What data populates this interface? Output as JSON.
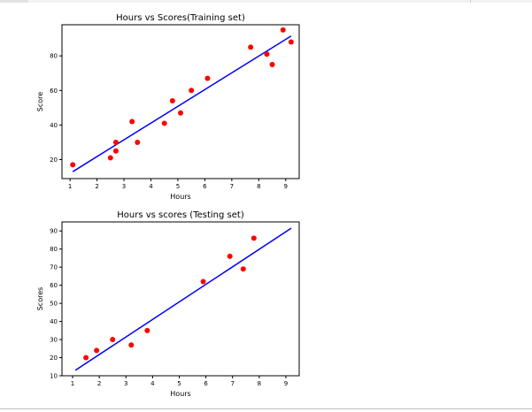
{
  "colors": {
    "points": "#ff0000",
    "line": "#0000ff",
    "axes": "#000000"
  },
  "chart_data": [
    {
      "type": "scatter",
      "title": "Hours vs Scores(Training set)",
      "xlabel": "Hours",
      "ylabel": "Score",
      "xlim": [
        0.7,
        9.5
      ],
      "ylim": [
        9,
        98
      ],
      "xticks": [
        1,
        2,
        3,
        4,
        5,
        6,
        7,
        8,
        9
      ],
      "yticks": [
        20,
        40,
        60,
        80
      ],
      "grid": false,
      "points": {
        "color": "red",
        "x": [
          1.1,
          2.5,
          2.7,
          2.7,
          3.3,
          3.5,
          4.5,
          4.8,
          5.1,
          5.5,
          6.1,
          7.7,
          8.3,
          8.5,
          8.9,
          9.2
        ],
        "y": [
          17,
          21,
          30,
          25,
          42,
          30,
          41,
          54,
          47,
          60,
          67,
          85,
          81,
          75,
          95,
          88
        ]
      },
      "regression_line": {
        "color": "blue",
        "x": [
          1.1,
          9.2
        ],
        "y": [
          13,
          91.5
        ]
      }
    },
    {
      "type": "scatter",
      "title": "Hours vs scores (Testing set)",
      "xlabel": "Hours",
      "ylabel": "Scores",
      "xlim": [
        0.6,
        9.5
      ],
      "ylim": [
        10,
        95
      ],
      "xticks": [
        1,
        2,
        3,
        4,
        5,
        6,
        7,
        8,
        9
      ],
      "yticks": [
        10,
        20,
        30,
        40,
        50,
        60,
        70,
        80,
        90
      ],
      "grid": false,
      "points": {
        "color": "red",
        "x": [
          1.5,
          1.9,
          2.5,
          3.2,
          3.8,
          5.9,
          6.9,
          7.4,
          7.8
        ],
        "y": [
          20,
          24,
          30,
          27,
          35,
          62,
          76,
          69,
          86
        ]
      },
      "regression_line": {
        "color": "blue",
        "x": [
          1.1,
          9.2
        ],
        "y": [
          13,
          91.5
        ]
      }
    }
  ]
}
